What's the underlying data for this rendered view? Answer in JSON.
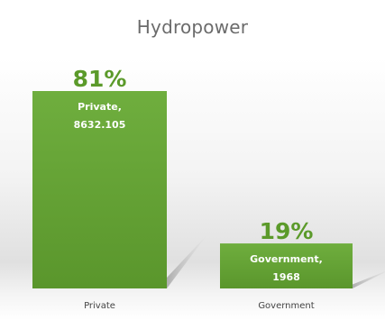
{
  "chart_data": {
    "type": "bar",
    "title": "Hydropower",
    "categories": [
      "Private",
      "Government"
    ],
    "values": [
      8632.105,
      1968
    ],
    "percent_labels": [
      "81%",
      "19%"
    ],
    "data_label_lines": [
      [
        "Private,",
        "8632.105"
      ],
      [
        "Government,",
        "1968"
      ]
    ],
    "xlabel": "",
    "ylabel": "",
    "grid": false,
    "legend": "none",
    "colors": {
      "bar": "#5e9d30",
      "bar_top": "#6fae3e",
      "percent_text": "#5b9a2a"
    }
  }
}
